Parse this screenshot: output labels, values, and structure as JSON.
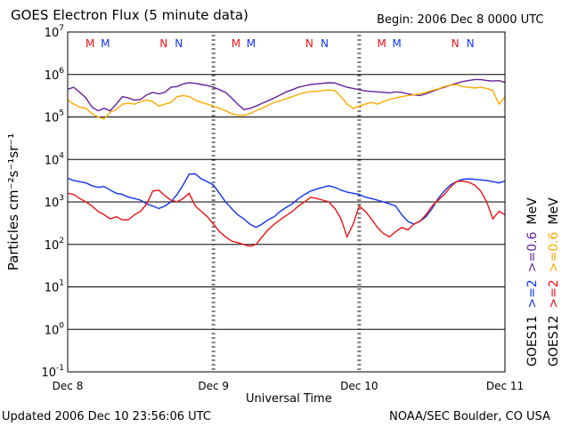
{
  "header": {
    "title": "GOES Electron Flux (5 minute data)",
    "begin": "Begin: 2006 Dec 8 0000 UTC"
  },
  "footer": {
    "updated": "Updated 2006 Dec 10 23:56:06 UTC",
    "credit": "NOAA/SEC Boulder, CO USA"
  },
  "colors": {
    "red": "#ee1111",
    "blue": "#1133ee",
    "purple": "#662299",
    "orange": "#ffaa00",
    "axis": "#000000"
  },
  "chart_data": {
    "type": "line",
    "title": "GOES Electron Flux (5 minute data)",
    "xlabel": "Universal Time",
    "ylabel": "Particles cm⁻²s⁻¹sr⁻¹",
    "yscale": "log",
    "ylim": [
      0.1,
      10000000
    ],
    "xlim": [
      0,
      72
    ],
    "x_unit": "hours since 2006 Dec 8 0000 UTC",
    "xtick_labels": [
      {
        "x": 0,
        "label": "Dec 8"
      },
      {
        "x": 24,
        "label": "Dec 9"
      },
      {
        "x": 48,
        "label": "Dec 10"
      },
      {
        "x": 72,
        "label": "Dec 11"
      }
    ],
    "ytick_labels": [
      {
        "base": "10",
        "exp": "-1"
      },
      {
        "base": "10",
        "exp": "0"
      },
      {
        "base": "10",
        "exp": "1"
      },
      {
        "base": "10",
        "exp": "2"
      },
      {
        "base": "10",
        "exp": "3"
      },
      {
        "base": "10",
        "exp": "4"
      },
      {
        "base": "10",
        "exp": "5"
      },
      {
        "base": "10",
        "exp": "6"
      },
      {
        "base": "10",
        "exp": "7"
      }
    ],
    "grid": true,
    "threshold": {
      "value": 1000,
      "style": "dashed"
    },
    "legend_right": [
      {
        "text": ">=2",
        "color": "blue",
        "column": "GOES11"
      },
      {
        "text": ">=0.6",
        "color": "purple",
        "column": "GOES11"
      },
      {
        "text": "MeV",
        "color": "black",
        "column": "GOES11"
      },
      {
        "text": ">=2",
        "color": "red",
        "column": "GOES12"
      },
      {
        "text": ">=0.6",
        "color": "orange",
        "column": "GOES12"
      },
      {
        "text": "MeV",
        "color": "black",
        "column": "GOES12"
      }
    ],
    "satellites": [
      "GOES11",
      "GOES12"
    ],
    "markers": [
      {
        "x": 3.7,
        "label": "M",
        "color": "red"
      },
      {
        "x": 6.2,
        "label": "M",
        "color": "blue"
      },
      {
        "x": 15.8,
        "label": "N",
        "color": "red"
      },
      {
        "x": 18.3,
        "label": "N",
        "color": "blue"
      },
      {
        "x": 27.7,
        "label": "M",
        "color": "red"
      },
      {
        "x": 30.2,
        "label": "M",
        "color": "blue"
      },
      {
        "x": 39.8,
        "label": "N",
        "color": "red"
      },
      {
        "x": 42.3,
        "label": "N",
        "color": "blue"
      },
      {
        "x": 51.7,
        "label": "M",
        "color": "red"
      },
      {
        "x": 54.2,
        "label": "M",
        "color": "blue"
      },
      {
        "x": 63.8,
        "label": "N",
        "color": "red"
      },
      {
        "x": 66.3,
        "label": "N",
        "color": "blue"
      }
    ],
    "series": [
      {
        "color": "purple",
        "x": [
          0,
          1,
          2,
          3,
          4,
          5,
          6,
          7,
          8,
          9,
          10,
          11,
          12,
          13,
          14,
          15,
          16,
          17,
          18,
          19,
          20,
          21,
          22,
          23,
          24,
          25,
          26,
          27,
          28,
          29,
          30,
          31,
          32,
          33,
          34,
          35,
          36,
          37,
          38,
          39,
          40,
          41,
          42,
          43,
          44,
          45,
          46,
          47,
          48,
          49,
          50,
          51,
          52,
          53,
          54,
          55,
          56,
          57,
          58,
          59,
          60,
          61,
          62,
          63,
          64,
          65,
          66,
          67,
          68,
          69,
          70,
          71,
          72
        ],
        "y": [
          450000,
          500000,
          380000,
          280000,
          170000,
          140000,
          160000,
          140000,
          200000,
          300000,
          280000,
          250000,
          260000,
          330000,
          380000,
          350000,
          380000,
          500000,
          520000,
          600000,
          640000,
          620000,
          580000,
          550000,
          500000,
          440000,
          380000,
          280000,
          200000,
          150000,
          160000,
          180000,
          210000,
          240000,
          280000,
          330000,
          390000,
          440000,
          500000,
          540000,
          580000,
          600000,
          620000,
          640000,
          630000,
          560000,
          500000,
          470000,
          440000,
          410000,
          400000,
          390000,
          380000,
          370000,
          390000,
          380000,
          350000,
          330000,
          320000,
          350000,
          400000,
          450000,
          500000,
          560000,
          620000,
          680000,
          720000,
          760000,
          760000,
          720000,
          700000,
          720000,
          650000
        ]
      },
      {
        "color": "orange",
        "x": [
          0,
          1,
          2,
          3,
          4,
          5,
          6,
          7,
          8,
          9,
          10,
          11,
          12,
          13,
          14,
          15,
          16,
          17,
          18,
          19,
          20,
          21,
          22,
          23,
          24,
          25,
          26,
          27,
          28,
          29,
          30,
          31,
          32,
          33,
          34,
          35,
          36,
          37,
          38,
          39,
          40,
          41,
          42,
          43,
          44,
          45,
          46,
          47,
          48,
          49,
          50,
          51,
          52,
          53,
          54,
          55,
          56,
          57,
          58,
          59,
          60,
          61,
          62,
          63,
          64,
          65,
          66,
          67,
          68,
          69,
          70,
          71,
          72
        ],
        "y": [
          250000,
          200000,
          170000,
          160000,
          120000,
          100000,
          90000,
          130000,
          150000,
          200000,
          210000,
          200000,
          230000,
          250000,
          230000,
          180000,
          200000,
          220000,
          300000,
          320000,
          300000,
          250000,
          220000,
          200000,
          180000,
          160000,
          140000,
          120000,
          110000,
          110000,
          120000,
          140000,
          160000,
          190000,
          220000,
          240000,
          270000,
          300000,
          340000,
          370000,
          400000,
          400000,
          420000,
          430000,
          420000,
          300000,
          200000,
          160000,
          180000,
          200000,
          220000,
          200000,
          230000,
          260000,
          280000,
          300000,
          320000,
          330000,
          350000,
          380000,
          420000,
          460000,
          520000,
          560000,
          580000,
          520000,
          500000,
          480000,
          500000,
          470000,
          420000,
          200000,
          300000
        ]
      },
      {
        "color": "blue",
        "x": [
          0,
          1,
          2,
          3,
          4,
          5,
          6,
          7,
          8,
          9,
          10,
          11,
          12,
          13,
          14,
          15,
          16,
          17,
          18,
          19,
          20,
          21,
          22,
          23,
          24,
          25,
          26,
          27,
          28,
          29,
          30,
          31,
          32,
          33,
          34,
          35,
          36,
          37,
          38,
          39,
          40,
          41,
          42,
          43,
          44,
          45,
          46,
          47,
          48,
          49,
          50,
          51,
          52,
          53,
          54,
          55,
          56,
          57,
          58,
          59,
          60,
          61,
          62,
          63,
          64,
          65,
          66,
          67,
          68,
          69,
          70,
          71,
          72
        ],
        "y": [
          3600,
          3200,
          3000,
          2800,
          2400,
          2200,
          2300,
          1900,
          1600,
          1500,
          1300,
          1200,
          1100,
          900,
          800,
          700,
          800,
          1000,
          1500,
          2500,
          4500,
          4600,
          3500,
          3000,
          2500,
          1600,
          1000,
          700,
          500,
          400,
          300,
          250,
          300,
          380,
          450,
          600,
          750,
          900,
          1200,
          1500,
          1800,
          2000,
          2200,
          2400,
          2200,
          1900,
          1700,
          1600,
          1500,
          1300,
          1200,
          1100,
          1000,
          900,
          800,
          500,
          350,
          300,
          350,
          450,
          700,
          1200,
          1800,
          2500,
          3000,
          3400,
          3500,
          3400,
          3300,
          3200,
          3000,
          2800,
          3100
        ]
      },
      {
        "color": "red",
        "x": [
          0,
          1,
          2,
          3,
          4,
          5,
          6,
          7,
          8,
          9,
          10,
          11,
          12,
          13,
          14,
          15,
          16,
          17,
          18,
          19,
          20,
          21,
          22,
          23,
          24,
          25,
          26,
          27,
          28,
          29,
          30,
          31,
          32,
          33,
          34,
          35,
          36,
          37,
          38,
          39,
          40,
          41,
          42,
          43,
          44,
          45,
          46,
          47,
          48,
          49,
          50,
          51,
          52,
          53,
          54,
          55,
          56,
          57,
          58,
          59,
          60,
          61,
          62,
          63,
          64,
          65,
          66,
          67,
          68,
          69,
          70,
          71,
          72
        ],
        "y": [
          1600,
          1500,
          1200,
          1000,
          800,
          600,
          500,
          400,
          450,
          380,
          380,
          500,
          600,
          900,
          1800,
          1900,
          1400,
          1100,
          1000,
          1200,
          1600,
          800,
          600,
          450,
          300,
          200,
          150,
          120,
          110,
          100,
          90,
          100,
          150,
          220,
          300,
          380,
          480,
          600,
          800,
          1000,
          1300,
          1200,
          1100,
          1000,
          700,
          400,
          150,
          300,
          800,
          600,
          400,
          250,
          180,
          150,
          200,
          250,
          220,
          300,
          350,
          500,
          800,
          1100,
          1500,
          2200,
          3000,
          3100,
          2900,
          2500,
          1800,
          1000,
          400,
          600,
          500
        ]
      }
    ]
  }
}
